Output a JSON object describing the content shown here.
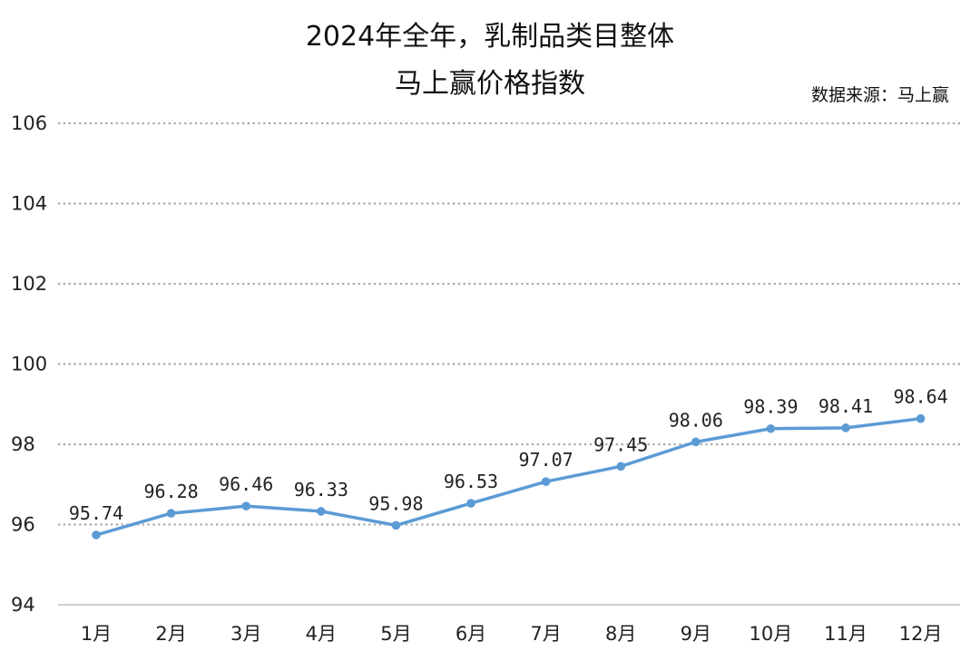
{
  "chart_data": {
    "type": "line",
    "title_lines": [
      "2024年全年，乳制品类目整体",
      "马上赢价格指数"
    ],
    "source": "数据来源：马上赢",
    "categories": [
      "1月",
      "2月",
      "3月",
      "4月",
      "5月",
      "6月",
      "7月",
      "8月",
      "9月",
      "10月",
      "11月",
      "12月"
    ],
    "series": [
      {
        "values": [
          95.74,
          96.28,
          96.46,
          96.33,
          95.98,
          96.53,
          97.07,
          97.45,
          98.06,
          98.39,
          98.41,
          98.64
        ],
        "labels": [
          "95.74",
          "96.28",
          "96.46",
          "96.33",
          "95.98",
          "96.53",
          "97.07",
          "97.45",
          "98.06",
          "98.39",
          "98.41",
          "98.64"
        ]
      }
    ],
    "ylim": [
      94,
      106
    ],
    "yticks": [
      94,
      96,
      98,
      100,
      102,
      104,
      106
    ],
    "ytick_labels": [
      "94",
      "96",
      "98",
      "100",
      "102",
      "104",
      "106"
    ],
    "grid": "horizontal-dotted",
    "legend": "none",
    "colors": {
      "line": "#5b9bd5",
      "grid": "#a6a6a6",
      "axis": "#bfbfbf"
    }
  }
}
